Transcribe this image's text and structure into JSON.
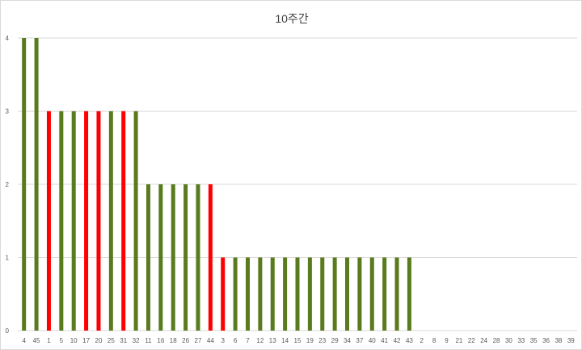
{
  "chart_data": {
    "type": "bar",
    "title": "10주간",
    "xlabel": "",
    "ylabel": "",
    "ylim": [
      0,
      4
    ],
    "yticks": [
      0,
      1,
      2,
      3,
      4
    ],
    "grid": true,
    "legend": "none",
    "colors": {
      "default": "#5a7a1e",
      "highlight": "#ff0000"
    },
    "categories": [
      "4",
      "45",
      "1",
      "5",
      "10",
      "17",
      "20",
      "25",
      "31",
      "32",
      "11",
      "16",
      "18",
      "26",
      "27",
      "44",
      "3",
      "6",
      "7",
      "12",
      "13",
      "14",
      "15",
      "19",
      "23",
      "29",
      "34",
      "37",
      "40",
      "41",
      "42",
      "43",
      "2",
      "8",
      "9",
      "21",
      "22",
      "24",
      "28",
      "30",
      "33",
      "35",
      "36",
      "38",
      "39"
    ],
    "values": [
      4,
      4,
      3,
      3,
      3,
      3,
      3,
      3,
      3,
      3,
      2,
      2,
      2,
      2,
      2,
      2,
      1,
      1,
      1,
      1,
      1,
      1,
      1,
      1,
      1,
      1,
      1,
      1,
      1,
      1,
      1,
      1,
      0,
      0,
      0,
      0,
      0,
      0,
      0,
      0,
      0,
      0,
      0,
      0,
      0
    ],
    "highlighted": [
      "1",
      "17",
      "20",
      "31",
      "44",
      "3"
    ]
  }
}
